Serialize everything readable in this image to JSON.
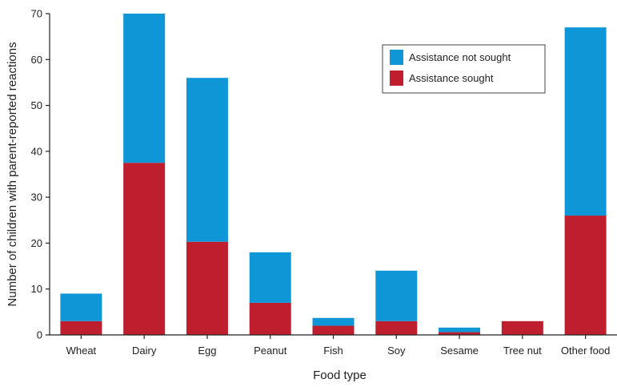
{
  "chart_data": {
    "type": "bar",
    "stacked": true,
    "title": "",
    "xlabel": "Food type",
    "ylabel": "Number of children with parent-reported reactions",
    "ylim": [
      0,
      70
    ],
    "yticks": [
      0,
      10,
      20,
      30,
      40,
      50,
      60,
      70
    ],
    "grid": false,
    "legend_position": "top-right",
    "categories": [
      "Wheat",
      "Dairy",
      "Egg",
      "Peanut",
      "Fish",
      "Soy",
      "Sesame",
      "Tree nut",
      "Other food"
    ],
    "series": [
      {
        "name": "Assistance sought",
        "color": "#be1e2d",
        "values": [
          3,
          37.5,
          20.3,
          7,
          2,
          3,
          0.6,
          3,
          26
        ]
      },
      {
        "name": "Assistance not sought",
        "color": "#0f96d7",
        "values": [
          6,
          32.5,
          35.7,
          11,
          1.7,
          11,
          1,
          0,
          41
        ]
      }
    ],
    "legend_order": [
      "Assistance not sought",
      "Assistance sought"
    ]
  }
}
